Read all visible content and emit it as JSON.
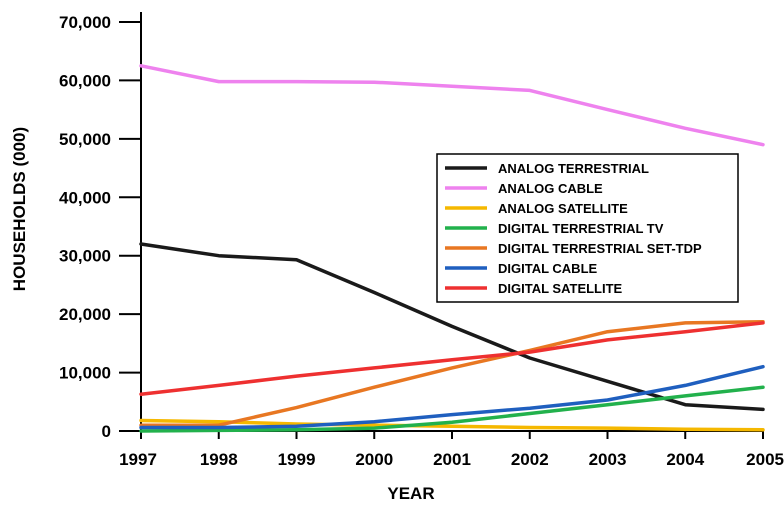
{
  "chart_data": {
    "type": "line",
    "title": "",
    "xlabel": "YEAR",
    "ylabel": "HOUSEHOLDS (000)",
    "x": [
      1997,
      1998,
      1999,
      2000,
      2001,
      2002,
      2003,
      2004,
      2005
    ],
    "x_tick_labels": [
      "1997",
      "1998",
      "1999",
      "2000",
      "2001",
      "2002",
      "2003",
      "2004",
      "2005"
    ],
    "ylim": [
      0,
      70000
    ],
    "y_ticks": [
      0,
      10000,
      20000,
      30000,
      40000,
      50000,
      60000,
      70000
    ],
    "y_tick_labels": [
      "0",
      "10,000",
      "20,000",
      "30,000",
      "40,000",
      "50,000",
      "60,000",
      "70,000"
    ],
    "grid": false,
    "legend_position": "center-right",
    "series": [
      {
        "name": "ANALOG TERRESTRIAL",
        "color": "#1a1a1a",
        "values": [
          32000,
          30000,
          29300,
          23700,
          17900,
          12500,
          8500,
          4500,
          3700
        ]
      },
      {
        "name": "ANALOG CABLE",
        "color": "#ee82ee",
        "values": [
          62500,
          59800,
          59800,
          59700,
          59000,
          58300,
          55000,
          51800,
          49000
        ]
      },
      {
        "name": "ANALOG SATELLITE",
        "color": "#f5b800",
        "values": [
          1800,
          1600,
          1200,
          1000,
          800,
          600,
          500,
          300,
          200
        ]
      },
      {
        "name": "DIGITAL TERRESTRIAL TV",
        "color": "#22b14c",
        "values": [
          0,
          100,
          200,
          500,
          1500,
          3000,
          4500,
          6000,
          7500
        ]
      },
      {
        "name": "DIGITAL TERRESTRIAL SET-TDP",
        "color": "#e87722",
        "values": [
          1000,
          1000,
          4000,
          7500,
          10800,
          13800,
          17000,
          18500,
          18700
        ]
      },
      {
        "name": "DIGITAL CABLE",
        "color": "#1f5fbf",
        "values": [
          600,
          600,
          800,
          1600,
          2800,
          3900,
          5300,
          7800,
          11000
        ]
      },
      {
        "name": "DIGITAL SATELLITE",
        "color": "#ee3030",
        "values": [
          6300,
          7800,
          9400,
          10800,
          12200,
          13500,
          15600,
          17000,
          18500
        ]
      }
    ]
  }
}
